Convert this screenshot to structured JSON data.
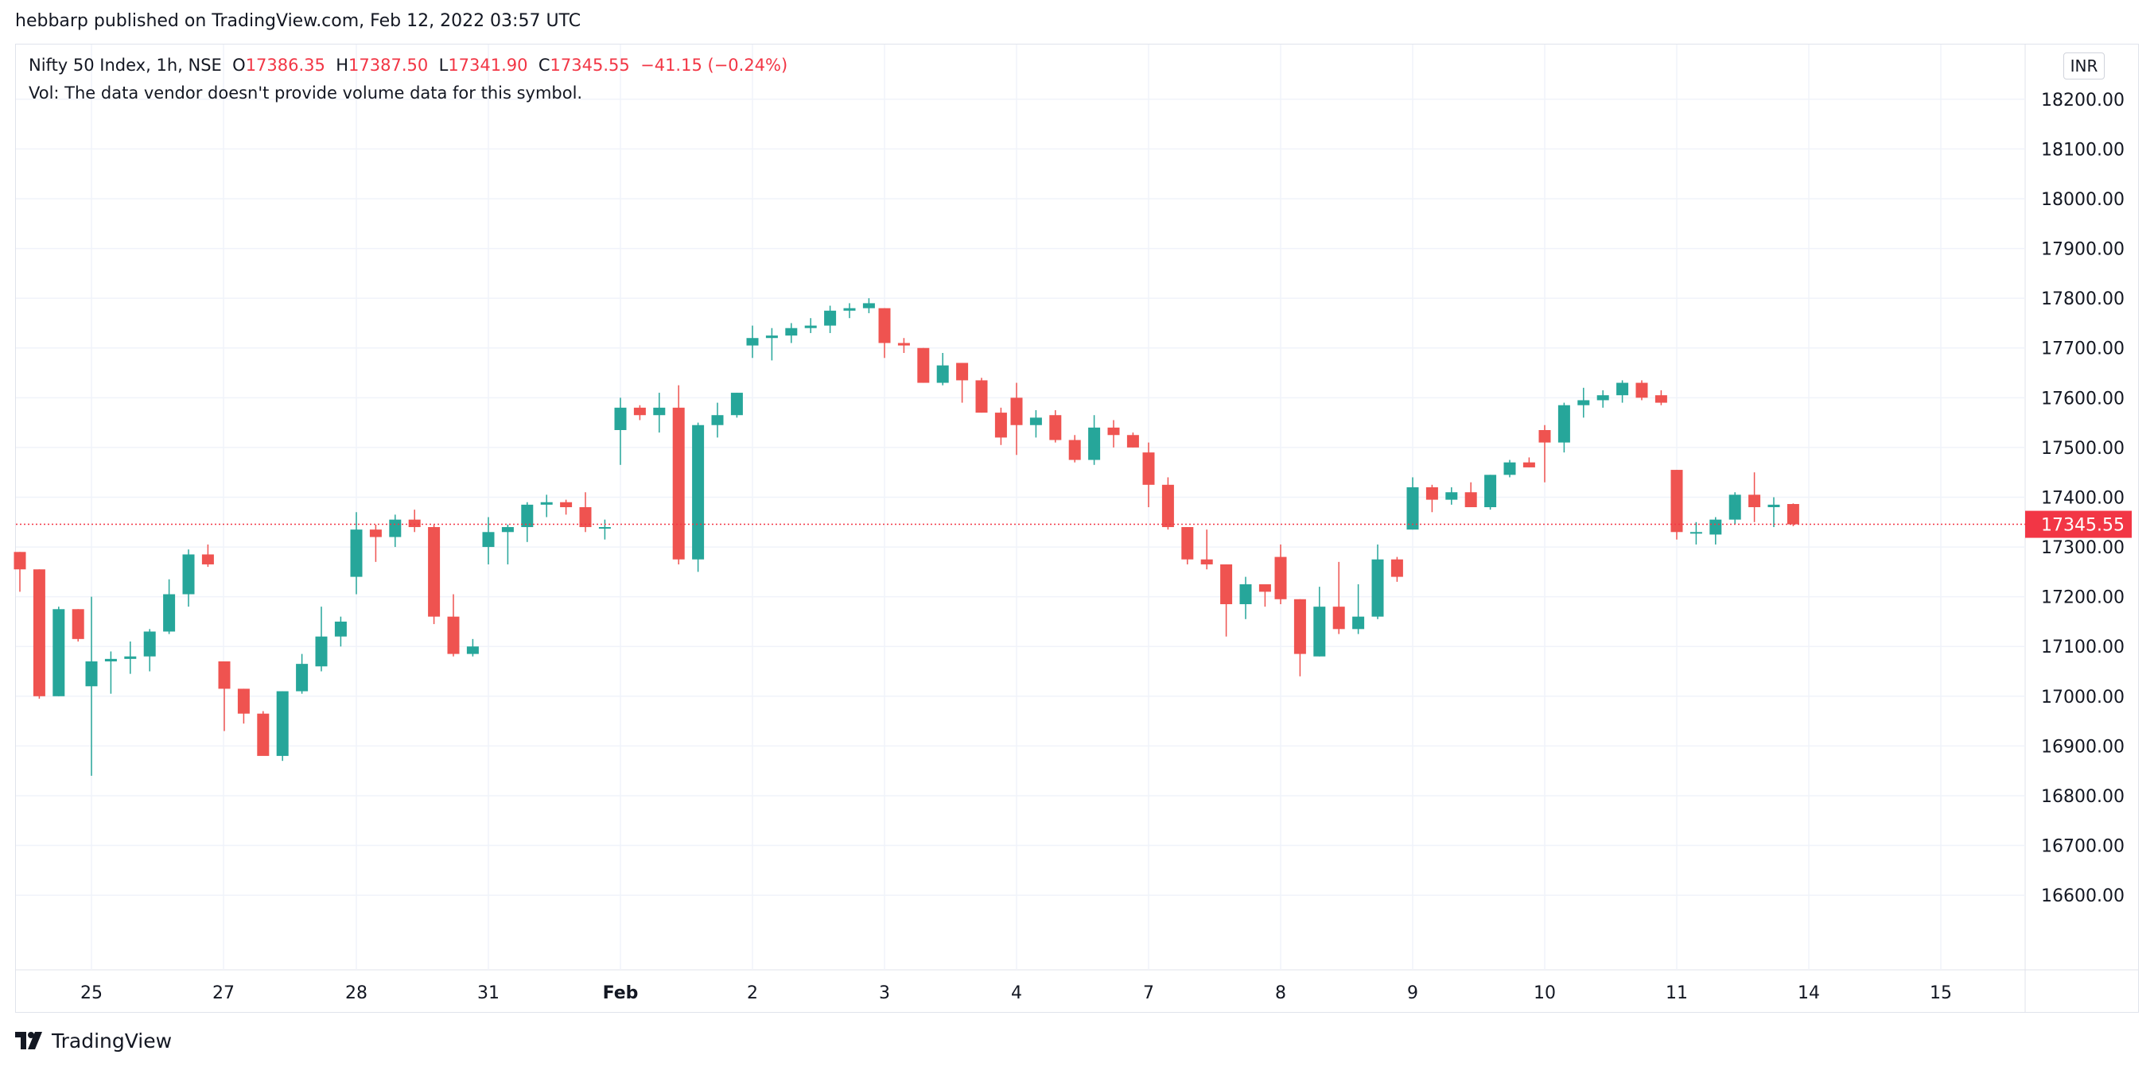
{
  "header": {
    "caption": "hebbarp published on TradingView.com, Feb 12, 2022 03:57 UTC"
  },
  "legend": {
    "symbol": "Nifty 50 Index, 1h, NSE",
    "o_label": "O",
    "o_value": "17386.35",
    "h_label": "H",
    "h_value": "17387.50",
    "l_label": "L",
    "l_value": "17341.90",
    "c_label": "C",
    "c_value": "17345.55",
    "change": "−41.15 (−0.24%)",
    "vol_note": "Vol: The data vendor doesn't provide volume data for this symbol."
  },
  "currency": "INR",
  "footer": {
    "brand": "TradingView"
  },
  "colors": {
    "up": "#26a69a",
    "down": "#ef5350",
    "grid": "#f0f3fa",
    "last_price": "#f23645"
  },
  "chart_data": {
    "type": "candlestick",
    "title": "Nifty 50 Index, 1h, NSE",
    "ylim": [
      16450,
      18310
    ],
    "y_ticks": [
      16600,
      16700,
      16800,
      16900,
      17000,
      17100,
      17200,
      17300,
      17400,
      17500,
      17600,
      17700,
      17800,
      17900,
      18000,
      18100,
      18200
    ],
    "y_tick_labels": [
      "16600.00",
      "16700.00",
      "16800.00",
      "16900.00",
      "17000.00",
      "17100.00",
      "17200.00",
      "17300.00",
      "17400.00",
      "17500.00",
      "17600.00",
      "17700.00",
      "17800.00",
      "17900.00",
      "18000.00",
      "18100.00",
      "18200.00"
    ],
    "x_labels": [
      "25",
      "27",
      "28",
      "31",
      "Feb",
      "2",
      "3",
      "4",
      "7",
      "8",
      "9",
      "10",
      "11",
      "14",
      "15"
    ],
    "x_label_bold": "Feb",
    "last_price": 17345.55,
    "last_price_label": "17345.55",
    "grid": true,
    "sessions": [
      [
        [
          17290,
          17290,
          17210,
          17255
        ],
        [
          17255,
          17255,
          16995,
          17000
        ],
        [
          17000,
          17180,
          17000,
          17175
        ],
        [
          17175,
          17175,
          17110,
          17115
        ]
      ],
      [
        [
          17020,
          17200,
          16840,
          17070
        ],
        [
          17070,
          17090,
          17005,
          17075
        ],
        [
          17075,
          17110,
          17045,
          17080
        ],
        [
          17080,
          17135,
          17050,
          17130
        ],
        [
          17130,
          17235,
          17125,
          17205
        ],
        [
          17205,
          17295,
          17180,
          17285
        ],
        [
          17285,
          17305,
          17260,
          17265
        ]
      ],
      [
        [
          17070,
          17070,
          16930,
          17015
        ],
        [
          17015,
          17015,
          16945,
          16965
        ],
        [
          16965,
          16970,
          16885,
          16880
        ],
        [
          16880,
          17010,
          16870,
          17010
        ],
        [
          17010,
          17085,
          17005,
          17065
        ],
        [
          17060,
          17180,
          17050,
          17120
        ],
        [
          17120,
          17160,
          17100,
          17150
        ]
      ],
      [
        [
          17240,
          17370,
          17205,
          17335
        ],
        [
          17335,
          17345,
          17270,
          17320
        ],
        [
          17320,
          17365,
          17300,
          17355
        ],
        [
          17355,
          17375,
          17330,
          17340
        ],
        [
          17340,
          17345,
          17145,
          17160
        ],
        [
          17160,
          17205,
          17080,
          17085
        ],
        [
          17085,
          17115,
          17080,
          17100
        ]
      ],
      [
        [
          17300,
          17360,
          17265,
          17330
        ],
        [
          17330,
          17345,
          17265,
          17340
        ],
        [
          17340,
          17390,
          17310,
          17385
        ],
        [
          17385,
          17405,
          17360,
          17390
        ],
        [
          17390,
          17395,
          17365,
          17380
        ],
        [
          17380,
          17410,
          17330,
          17340
        ],
        [
          17340,
          17355,
          17315,
          17340
        ]
      ],
      [
        [
          17535,
          17600,
          17465,
          17580
        ],
        [
          17580,
          17585,
          17555,
          17565
        ],
        [
          17565,
          17610,
          17530,
          17580
        ],
        [
          17580,
          17625,
          17265,
          17275
        ],
        [
          17275,
          17550,
          17250,
          17545
        ],
        [
          17545,
          17590,
          17520,
          17565
        ],
        [
          17565,
          17610,
          17560,
          17610
        ]
      ],
      [
        [
          17705,
          17745,
          17680,
          17720
        ],
        [
          17720,
          17740,
          17675,
          17725
        ],
        [
          17725,
          17750,
          17710,
          17740
        ],
        [
          17740,
          17760,
          17730,
          17745
        ],
        [
          17745,
          17785,
          17730,
          17775
        ],
        [
          17775,
          17790,
          17760,
          17780
        ],
        [
          17780,
          17800,
          17770,
          17790
        ]
      ],
      [
        [
          17780,
          17780,
          17680,
          17710
        ],
        [
          17710,
          17720,
          17690,
          17705
        ],
        [
          17700,
          17700,
          17630,
          17630
        ],
        [
          17630,
          17690,
          17625,
          17665
        ],
        [
          17670,
          17670,
          17590,
          17635
        ],
        [
          17635,
          17640,
          17570,
          17570
        ],
        [
          17570,
          17580,
          17505,
          17520
        ]
      ],
      [
        [
          17600,
          17630,
          17485,
          17545
        ],
        [
          17545,
          17575,
          17520,
          17560
        ],
        [
          17565,
          17575,
          17510,
          17515
        ],
        [
          17515,
          17525,
          17470,
          17475
        ],
        [
          17475,
          17565,
          17465,
          17540
        ],
        [
          17540,
          17555,
          17500,
          17525
        ],
        [
          17525,
          17530,
          17500,
          17500
        ]
      ],
      [
        [
          17490,
          17510,
          17380,
          17425
        ],
        [
          17425,
          17440,
          17335,
          17340
        ],
        [
          17340,
          17340,
          17265,
          17275
        ],
        [
          17275,
          17335,
          17255,
          17265
        ],
        [
          17265,
          17265,
          17120,
          17185
        ],
        [
          17185,
          17240,
          17155,
          17225
        ],
        [
          17225,
          17225,
          17180,
          17210
        ]
      ],
      [
        [
          17280,
          17305,
          17185,
          17195
        ],
        [
          17195,
          17195,
          17040,
          17085
        ],
        [
          17080,
          17220,
          17080,
          17180
        ],
        [
          17180,
          17270,
          17125,
          17135
        ],
        [
          17135,
          17225,
          17125,
          17160
        ],
        [
          17160,
          17305,
          17155,
          17275
        ],
        [
          17275,
          17280,
          17230,
          17240
        ]
      ],
      [
        [
          17335,
          17440,
          17335,
          17420
        ],
        [
          17420,
          17425,
          17370,
          17395
        ],
        [
          17395,
          17420,
          17385,
          17410
        ],
        [
          17410,
          17430,
          17380,
          17380
        ],
        [
          17380,
          17445,
          17375,
          17445
        ],
        [
          17445,
          17475,
          17440,
          17470
        ],
        [
          17470,
          17480,
          17460,
          17460
        ]
      ],
      [
        [
          17535,
          17545,
          17430,
          17510
        ],
        [
          17510,
          17590,
          17490,
          17585
        ],
        [
          17585,
          17620,
          17560,
          17595
        ],
        [
          17595,
          17615,
          17580,
          17605
        ],
        [
          17605,
          17635,
          17590,
          17630
        ],
        [
          17630,
          17635,
          17595,
          17600
        ],
        [
          17605,
          17615,
          17585,
          17590
        ]
      ],
      [
        [
          17455,
          17455,
          17315,
          17330
        ],
        [
          17330,
          17350,
          17305,
          17330
        ],
        [
          17325,
          17360,
          17305,
          17355
        ],
        [
          17355,
          17410,
          17345,
          17405
        ],
        [
          17405,
          17450,
          17350,
          17380
        ],
        [
          17380,
          17400,
          17340,
          17385
        ],
        [
          17386.35,
          17387.5,
          17341.9,
          17345.55
        ]
      ]
    ]
  }
}
